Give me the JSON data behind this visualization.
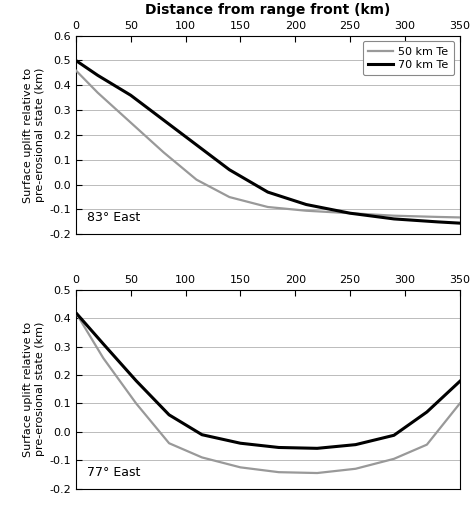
{
  "title_top": "Distance from range front (km)",
  "ylabel": "Surface uplift relative to\npre-erosional state (km)",
  "xlim": [
    0,
    350
  ],
  "xticks": [
    0,
    50,
    100,
    150,
    200,
    250,
    300,
    350
  ],
  "panel1": {
    "label": "83° East",
    "ylim": [
      -0.2,
      0.6
    ],
    "yticks": [
      -0.2,
      -0.1,
      0.0,
      0.1,
      0.2,
      0.3,
      0.4,
      0.5,
      0.6
    ],
    "line50_x": [
      0,
      20,
      50,
      80,
      110,
      140,
      175,
      210,
      250,
      290,
      330,
      350
    ],
    "line50_y": [
      0.46,
      0.37,
      0.25,
      0.13,
      0.02,
      -0.05,
      -0.09,
      -0.105,
      -0.115,
      -0.125,
      -0.13,
      -0.132
    ],
    "line70_x": [
      0,
      20,
      50,
      80,
      110,
      140,
      175,
      210,
      250,
      290,
      330,
      350
    ],
    "line70_y": [
      0.5,
      0.44,
      0.36,
      0.26,
      0.16,
      0.06,
      -0.03,
      -0.08,
      -0.115,
      -0.138,
      -0.15,
      -0.155
    ]
  },
  "panel2": {
    "label": "77° East",
    "ylim": [
      -0.2,
      0.5
    ],
    "yticks": [
      -0.2,
      -0.1,
      0.0,
      0.1,
      0.2,
      0.3,
      0.4,
      0.5
    ],
    "line50_x": [
      0,
      25,
      55,
      85,
      115,
      150,
      185,
      220,
      255,
      290,
      320,
      350
    ],
    "line50_y": [
      0.42,
      0.26,
      0.1,
      -0.04,
      -0.09,
      -0.125,
      -0.142,
      -0.145,
      -0.13,
      -0.095,
      -0.045,
      0.1
    ],
    "line70_x": [
      0,
      25,
      55,
      85,
      115,
      150,
      185,
      220,
      255,
      290,
      320,
      350
    ],
    "line70_y": [
      0.42,
      0.31,
      0.18,
      0.06,
      -0.01,
      -0.04,
      -0.055,
      -0.058,
      -0.045,
      -0.012,
      0.07,
      0.178
    ]
  },
  "legend_labels": [
    "50 km Te",
    "70 km Te"
  ],
  "color_50": "#999999",
  "color_70": "#000000",
  "lw_50": 1.6,
  "lw_70": 2.2,
  "background_color": "#ffffff",
  "grid_color": "#bbbbbb",
  "title_fontsize": 10,
  "label_fontsize": 8,
  "tick_fontsize": 8,
  "panel_label_fontsize": 9
}
